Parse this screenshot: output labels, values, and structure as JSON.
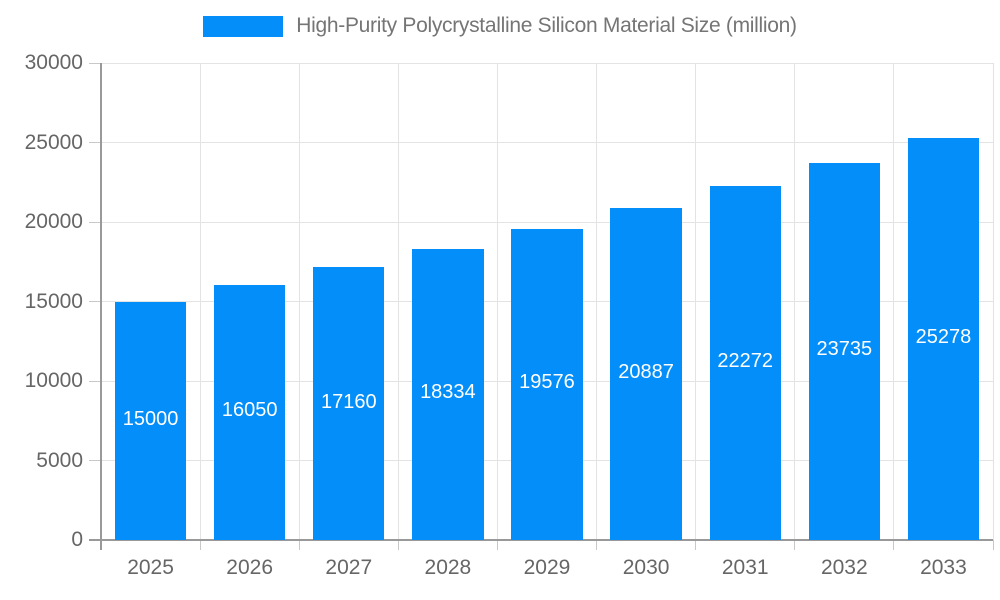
{
  "chart_data": {
    "type": "bar",
    "title": "High-Purity Polycrystalline Silicon Material Size (million)",
    "legend_position": "top",
    "categories": [
      "2025",
      "2026",
      "2027",
      "2028",
      "2029",
      "2030",
      "2031",
      "2032",
      "2033"
    ],
    "series": [
      {
        "name": "High-Purity Polycrystalline Silicon Material Size (million)",
        "values": [
          15000,
          16050,
          17160,
          18334,
          19576,
          20887,
          22272,
          23735,
          25278
        ]
      }
    ],
    "xlabel": "",
    "ylabel": "",
    "ylim": [
      0,
      30000
    ],
    "ytick_step": 5000,
    "ytick_labels": [
      "0",
      "5000",
      "10000",
      "15000",
      "20000",
      "25000",
      "30000"
    ],
    "grid": true,
    "data_labels": "inside-center-white",
    "colors": {
      "bar": "#048EF9",
      "bar_label_text": "#ffffff",
      "axis_line": "#999999",
      "tick": "#c8c8c8",
      "gridline": "#e3e3e3",
      "axis_text": "#666666",
      "legend_text": "#757575"
    }
  }
}
